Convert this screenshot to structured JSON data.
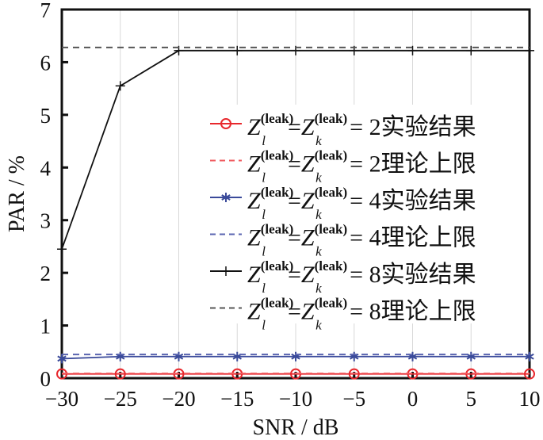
{
  "chart_data": {
    "type": "line",
    "title": "",
    "xlabel": "SNR / dB",
    "ylabel": "PAR / %",
    "xlim": [
      -30,
      10
    ],
    "ylim": [
      0,
      7
    ],
    "xticks": [
      -30,
      -25,
      -20,
      -15,
      -10,
      -5,
      0,
      5,
      10
    ],
    "xtick_labels": [
      "−30",
      "−25",
      "−20",
      "−15",
      "−10",
      "−5",
      "0",
      "5",
      "10"
    ],
    "yticks": [
      0,
      1,
      2,
      3,
      4,
      5,
      6,
      7
    ],
    "grid": "vertical",
    "legend_position": "right",
    "x": [
      -30,
      -25,
      -20,
      -15,
      -10,
      -5,
      0,
      5,
      10
    ],
    "series": [
      {
        "name": "Z_l^(leak)=Z_k^(leak)=2实验结果",
        "label_n": "2",
        "label_suffix": "实验结果",
        "color": "#e8282d",
        "style": "solid",
        "marker": "circle",
        "values": [
          0.08,
          0.08,
          0.08,
          0.08,
          0.08,
          0.08,
          0.08,
          0.08,
          0.08
        ]
      },
      {
        "name": "Z_l^(leak)=Z_k^(leak)=2理论上限",
        "label_n": "2",
        "label_suffix": "理论上限",
        "color": "#f05a5e",
        "style": "dashed",
        "marker": "none",
        "values": [
          0.09,
          0.09,
          0.09,
          0.09,
          0.09,
          0.09,
          0.09,
          0.09,
          0.09
        ]
      },
      {
        "name": "Z_l^(leak)=Z_k^(leak)=4实验结果",
        "label_n": "4",
        "label_suffix": "实验结果",
        "color": "#3a4a9a",
        "style": "solid",
        "marker": "star",
        "values": [
          0.37,
          0.41,
          0.41,
          0.41,
          0.41,
          0.41,
          0.41,
          0.41,
          0.41
        ]
      },
      {
        "name": "Z_l^(leak)=Z_k^(leak)=4理论上限",
        "label_n": "4",
        "label_suffix": "理论上限",
        "color": "#5a64b0",
        "style": "dashed",
        "marker": "none",
        "values": [
          0.45,
          0.45,
          0.45,
          0.45,
          0.45,
          0.45,
          0.45,
          0.45,
          0.45
        ]
      },
      {
        "name": "Z_l^(leak)=Z_k^(leak)=8实验结果",
        "label_n": "8",
        "label_suffix": "实验结果",
        "color": "#111111",
        "style": "solid",
        "marker": "plus",
        "values": [
          2.45,
          5.55,
          6.22,
          6.22,
          6.22,
          6.22,
          6.22,
          6.22,
          6.22
        ]
      },
      {
        "name": "Z_l^(leak)=Z_k^(leak)=8理论上限",
        "label_n": "8",
        "label_suffix": "理论上限",
        "color": "#555555",
        "style": "dashed",
        "marker": "none",
        "values": [
          6.28,
          6.28,
          6.28,
          6.28,
          6.28,
          6.28,
          6.28,
          6.28,
          6.28
        ]
      }
    ],
    "legend_symbol": "Z",
    "legend_super": "(leak)",
    "legend_sub_l": "l",
    "legend_sub_k": "k"
  }
}
